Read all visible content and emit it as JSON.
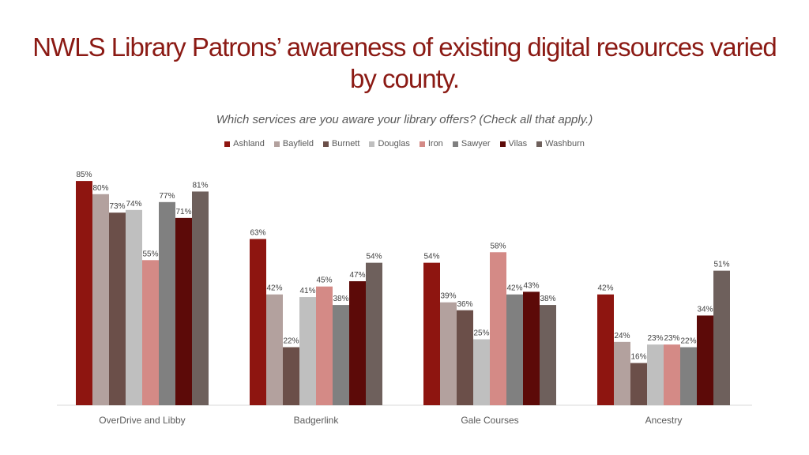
{
  "title": "NWLS Library Patrons’ awareness of existing digital resources varied by county.",
  "subtitle": "Which services are you aware your library offers? (Check all that apply.)",
  "chart_data": {
    "type": "bar",
    "categories": [
      "OverDrive and Libby",
      "Badgerlink",
      "Gale Courses",
      "Ancestry"
    ],
    "series": [
      {
        "name": "Ashland",
        "color": "#8e1510",
        "values": [
          85,
          63,
          54,
          42
        ],
        "labels": [
          "85%",
          "63%",
          "54%",
          "42%"
        ]
      },
      {
        "name": "Bayfield",
        "color": "#b3a19e",
        "values": [
          80,
          42,
          39,
          24
        ],
        "labels": [
          "80%",
          "42%",
          "39%",
          "24%"
        ]
      },
      {
        "name": "Burnett",
        "color": "#6b4f49",
        "values": [
          73,
          22,
          36,
          16
        ],
        "labels": [
          "73%",
          "22%",
          "36%",
          "16%"
        ]
      },
      {
        "name": "Douglas",
        "color": "#bfbfbf",
        "values": [
          74,
          41,
          25,
          23
        ],
        "labels": [
          "74%",
          "41%",
          "25%",
          "23%"
        ]
      },
      {
        "name": "Iron",
        "color": "#d48a86",
        "values": [
          55,
          45,
          58,
          23
        ],
        "labels": [
          "55%",
          "45%",
          "58%",
          "23%"
        ]
      },
      {
        "name": "Sawyer",
        "color": "#808080",
        "values": [
          77,
          38,
          42,
          22
        ],
        "labels": [
          "77%",
          "38%",
          "42%",
          "22%"
        ]
      },
      {
        "name": "Vilas",
        "color": "#5c0a08",
        "values": [
          71,
          47,
          43,
          34
        ],
        "labels": [
          "71%",
          "47%",
          "43%",
          "34%"
        ]
      },
      {
        "name": "Washburn",
        "color": "#6e605c",
        "values": [
          81,
          54,
          38,
          51
        ],
        "labels": [
          "81%",
          "54%",
          "38%",
          "51%"
        ]
      }
    ],
    "ylim": [
      0,
      100
    ],
    "grid": false,
    "legend_position": "top"
  }
}
